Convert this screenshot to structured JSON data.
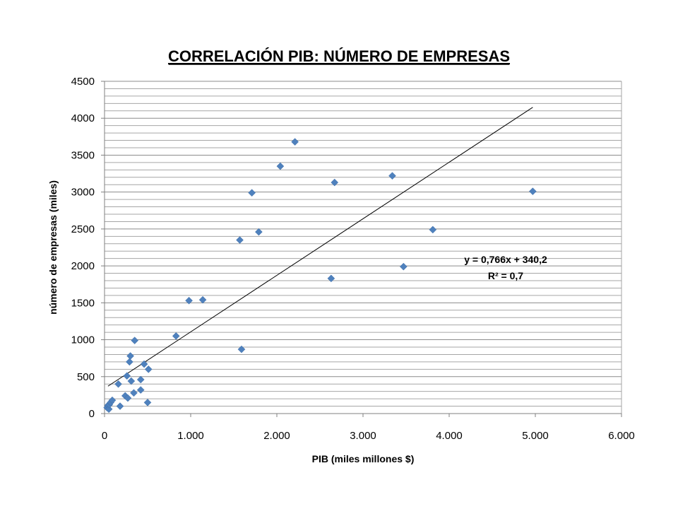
{
  "chart_data": {
    "type": "scatter",
    "title": "CORRELACIÓN PIB: NÚMERO DE EMPRESAS",
    "xlabel": "PIB (miles millones $)",
    "ylabel": "número de empresas (miles)",
    "xlim": [
      0,
      6000
    ],
    "ylim": [
      0,
      4500
    ],
    "x_ticks": [
      "0",
      "1.000",
      "2.000",
      "3.000",
      "4.000",
      "5.000",
      "6.000"
    ],
    "y_ticks": [
      "0",
      "500",
      "1000",
      "1500",
      "2000",
      "2500",
      "3000",
      "3500",
      "4000",
      "4500"
    ],
    "y_minor_step": 100,
    "grid": true,
    "marker_color": "#4F81BD",
    "points": [
      {
        "x": 30,
        "y": 80
      },
      {
        "x": 40,
        "y": 110
      },
      {
        "x": 50,
        "y": 60
      },
      {
        "x": 55,
        "y": 120
      },
      {
        "x": 70,
        "y": 150
      },
      {
        "x": 90,
        "y": 180
      },
      {
        "x": 160,
        "y": 400
      },
      {
        "x": 180,
        "y": 100
      },
      {
        "x": 240,
        "y": 240
      },
      {
        "x": 260,
        "y": 510
      },
      {
        "x": 270,
        "y": 210
      },
      {
        "x": 290,
        "y": 700
      },
      {
        "x": 300,
        "y": 780
      },
      {
        "x": 310,
        "y": 440
      },
      {
        "x": 340,
        "y": 280
      },
      {
        "x": 350,
        "y": 990
      },
      {
        "x": 420,
        "y": 460
      },
      {
        "x": 420,
        "y": 320
      },
      {
        "x": 460,
        "y": 670
      },
      {
        "x": 500,
        "y": 150
      },
      {
        "x": 510,
        "y": 600
      },
      {
        "x": 830,
        "y": 1050
      },
      {
        "x": 980,
        "y": 1530
      },
      {
        "x": 1140,
        "y": 1540
      },
      {
        "x": 1570,
        "y": 2350
      },
      {
        "x": 1590,
        "y": 870
      },
      {
        "x": 1710,
        "y": 2990
      },
      {
        "x": 1790,
        "y": 2460
      },
      {
        "x": 2040,
        "y": 3350
      },
      {
        "x": 2210,
        "y": 3680
      },
      {
        "x": 2630,
        "y": 1830
      },
      {
        "x": 2670,
        "y": 3130
      },
      {
        "x": 3340,
        "y": 3220
      },
      {
        "x": 3470,
        "y": 1990
      },
      {
        "x": 3810,
        "y": 2490
      },
      {
        "x": 4970,
        "y": 3010
      }
    ],
    "trendline": {
      "slope": 0.766,
      "intercept": 340.2,
      "x_start": 40,
      "x_end": 4970,
      "equation": "y = 0,766x + 340,2",
      "r2_label": "R² = 0,7"
    }
  }
}
